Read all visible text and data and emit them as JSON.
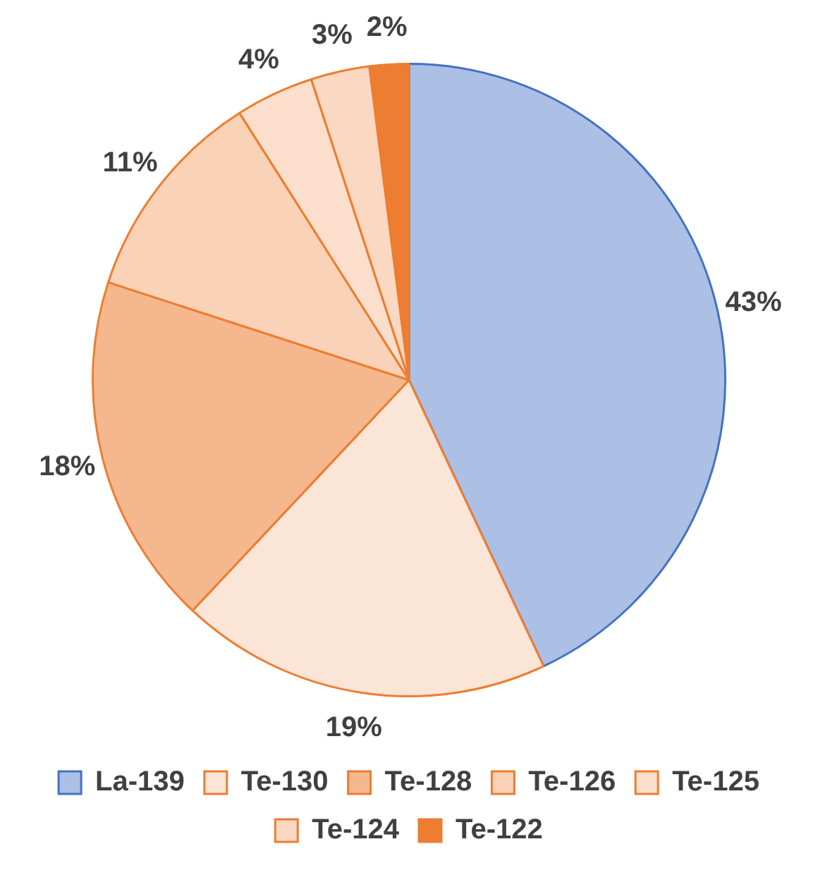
{
  "chart_data": {
    "type": "pie",
    "categories": [
      "La-139",
      "Te-130",
      "Te-128",
      "Te-126",
      "Te-125",
      "Te-124",
      "Te-122"
    ],
    "values": [
      43,
      19,
      18,
      11,
      4,
      3,
      2
    ],
    "colors": [
      "#4472c4",
      "#ed7d31",
      "#ed7d31",
      "#ed7d31",
      "#ed7d31",
      "#ed7d31",
      "#ed7d31"
    ],
    "value_labels": [
      "43%",
      "19%",
      "18%",
      "11%",
      "4%",
      "3%",
      "2%"
    ],
    "legend": "bottom"
  }
}
